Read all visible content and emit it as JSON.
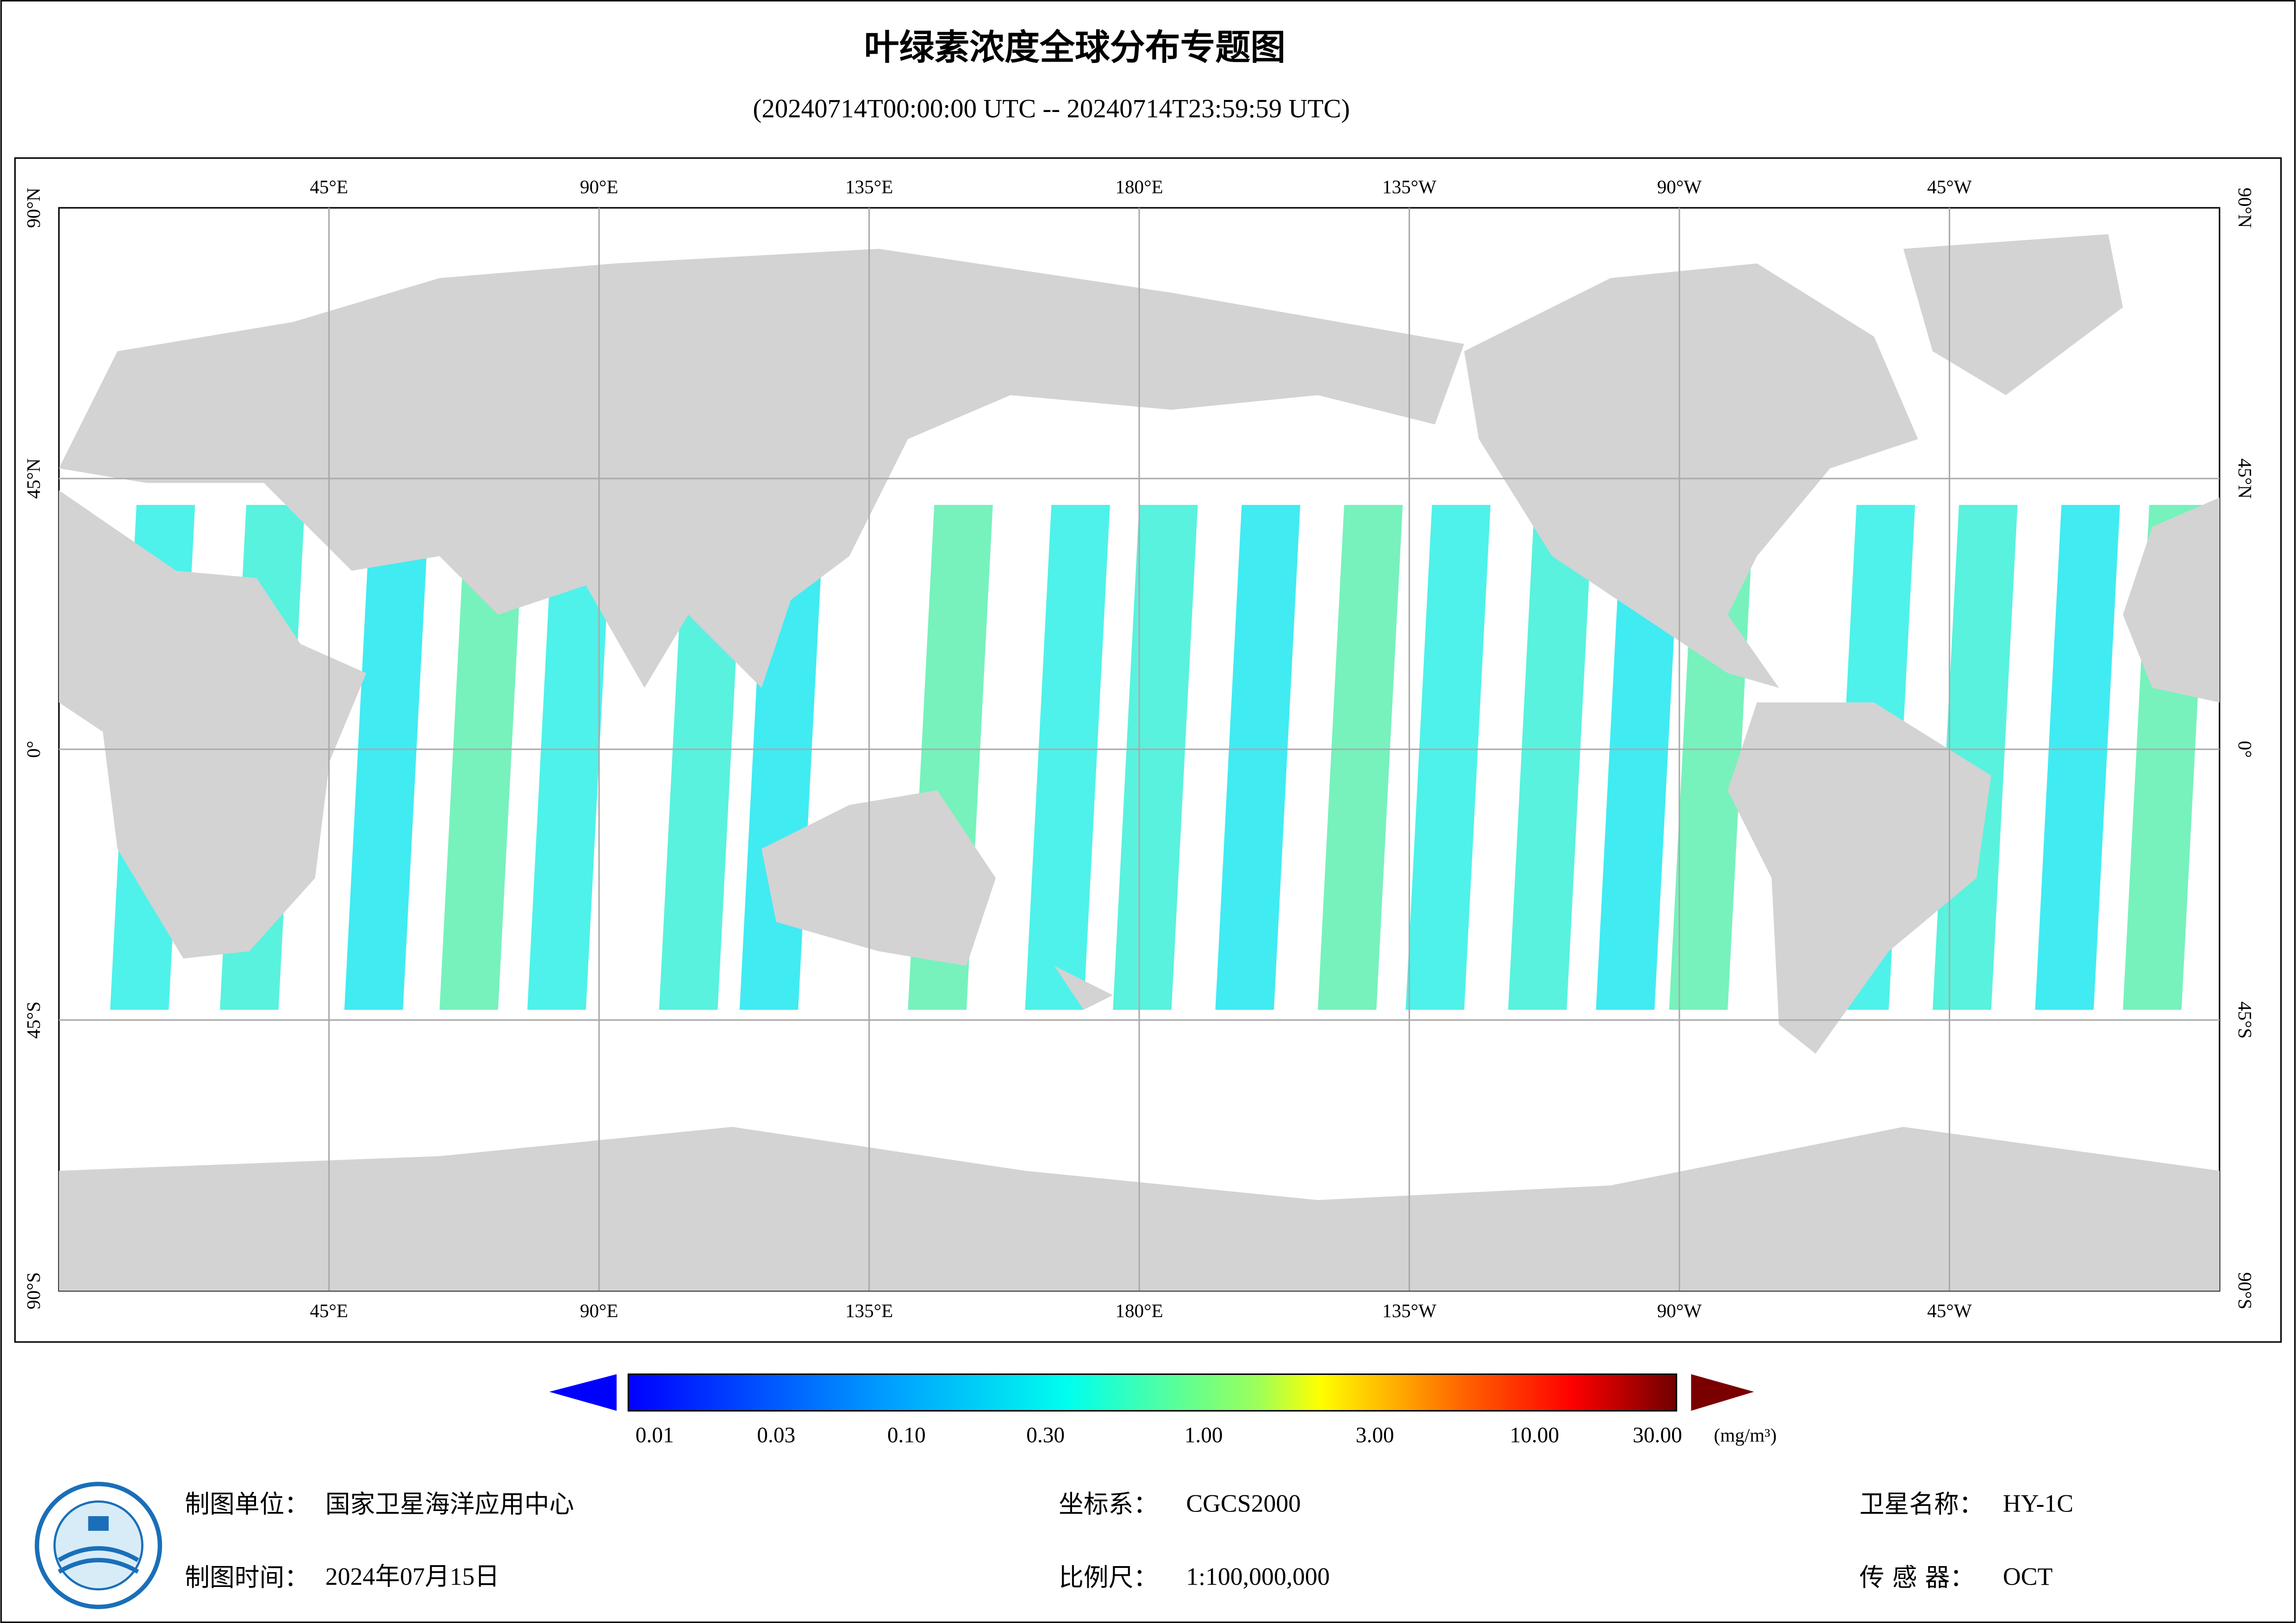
{
  "header": {
    "title": "叶绿素浓度全球分布专题图",
    "subtitle": "(20240714T00:00:00 UTC -- 20240714T23:59:59 UTC)"
  },
  "map": {
    "lon_labels": [
      "45°E",
      "90°E",
      "135°E",
      "180°E",
      "135°W",
      "90°W",
      "45°W"
    ],
    "lat_labels": [
      "90°N",
      "45°N",
      "0°",
      "45°S",
      "90°S"
    ]
  },
  "colorbar": {
    "ticks": [
      "0.01",
      "0.03",
      "0.10",
      "0.30",
      "1.00",
      "3.00",
      "10.00",
      "30.00"
    ],
    "unit": "(mg/m³)"
  },
  "footer": {
    "unit_label": "制图单位：",
    "unit_value": "国家卫星海洋应用中心",
    "date_label": "制图时间：",
    "date_value": "2024年07月15日",
    "crs_label": "坐标系：",
    "crs_value": "CGCS2000",
    "scale_label": "比例尺：",
    "scale_value": "1:100,000,000",
    "satellite_label": "卫星名称：",
    "satellite_value": "HY-1C",
    "sensor_label": "传 感 器：",
    "sensor_value": "OCT"
  }
}
